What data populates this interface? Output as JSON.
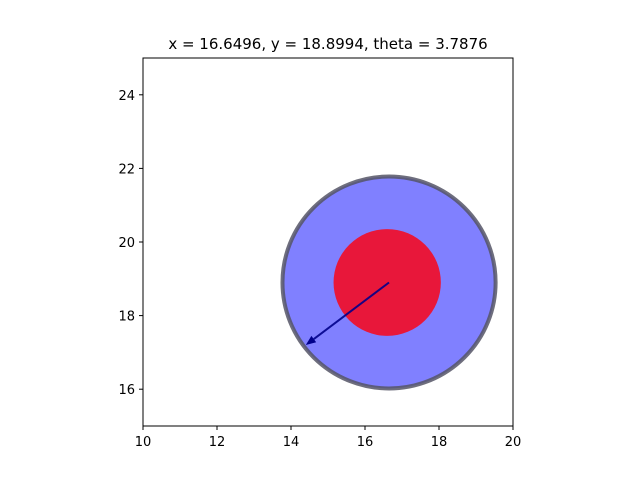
{
  "chart_data": {
    "type": "scatter",
    "title": "x = 16.6496, y = 18.8994, theta = 3.7876",
    "xlabel": "",
    "ylabel": "",
    "xlim": [
      10,
      20
    ],
    "ylim": [
      15,
      25
    ],
    "x_ticks": [
      {
        "value": 10,
        "label": "10"
      },
      {
        "value": 12,
        "label": "12"
      },
      {
        "value": 14,
        "label": "14"
      },
      {
        "value": 16,
        "label": "16"
      },
      {
        "value": 18,
        "label": "18"
      },
      {
        "value": 20,
        "label": "20"
      }
    ],
    "y_ticks": [
      {
        "value": 16,
        "label": "16"
      },
      {
        "value": 18,
        "label": "18"
      },
      {
        "value": 20,
        "label": "20"
      },
      {
        "value": 22,
        "label": "22"
      },
      {
        "value": 24,
        "label": "24"
      }
    ],
    "grid": false,
    "state": {
      "x": 16.6496,
      "y": 18.8994,
      "theta": 3.7876
    },
    "outer_circle": {
      "center": [
        16.65,
        18.9
      ],
      "radius": 2.88,
      "fill": "#8080ff",
      "edge": "#555566"
    },
    "inner_circle": {
      "center": [
        16.6,
        18.9
      ],
      "radius": 1.45,
      "fill": "#e8173a"
    },
    "heading_arrow": {
      "from": [
        16.6496,
        18.8994
      ],
      "to": [
        14.4,
        17.2
      ],
      "color": "#00008b"
    }
  }
}
